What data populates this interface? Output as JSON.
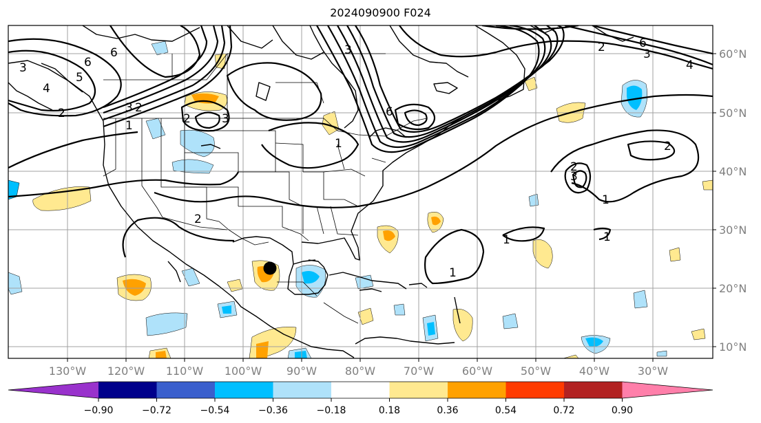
{
  "title": "2024090900 F024",
  "longitude_labels": [
    "130°W",
    "120°W",
    "110°W",
    "100°W",
    "90°W",
    "80°W",
    "70°W",
    "60°W",
    "50°W",
    "40°W",
    "30°W"
  ],
  "latitude_labels": [
    "60°N",
    "50°N",
    "40°N",
    "30°N",
    "20°N",
    "10°N"
  ],
  "colorbar": {
    "colors": [
      "#9932cc",
      "#00008b",
      "#3a5fcd",
      "#00bfff",
      "#afe2fa",
      "#ffffff",
      "#ffe990",
      "#ffa100",
      "#ff3b00",
      "#b22222",
      "#ff7faa"
    ],
    "under_color": "#9932cc",
    "over_color": "#ff7faa",
    "ticks": [
      "−0.90",
      "−0.72",
      "−0.54",
      "−0.36",
      "−0.18",
      "0.18",
      "0.36",
      "0.54",
      "0.72",
      "0.90"
    ]
  },
  "contour_labels": [
    "6",
    "3",
    "2",
    "1",
    "3",
    "2",
    "6",
    "5",
    "4",
    "3",
    "2",
    "1",
    "6",
    "3",
    "2",
    "6",
    "4",
    "3",
    "2",
    "1",
    "3",
    "2",
    "1",
    "1",
    "2",
    "1"
  ],
  "storm_marker": "center-circle"
}
